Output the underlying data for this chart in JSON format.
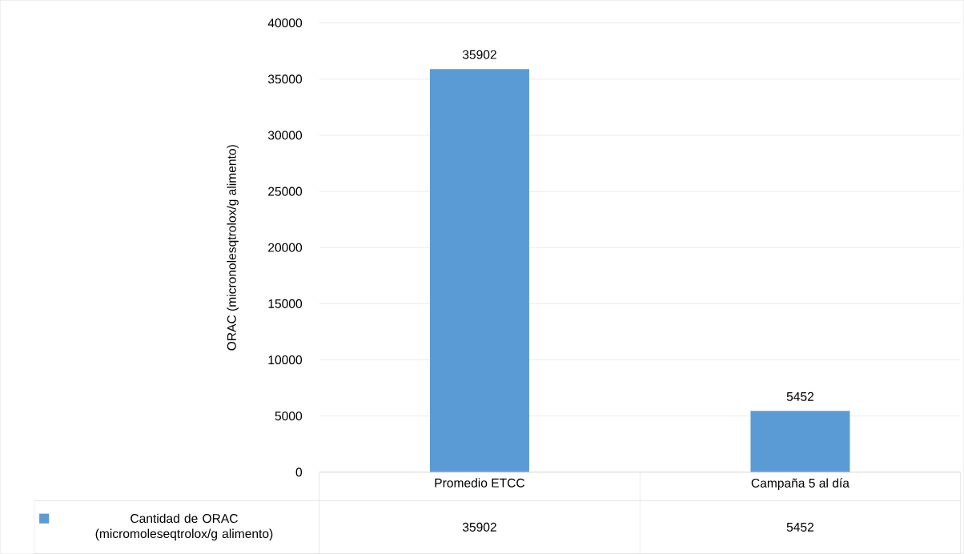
{
  "chart_data": {
    "type": "bar",
    "ylabel": "ORAC (micronolesqtrolox/g alimento)",
    "categories": [
      "Promedio ETCC",
      "Campaña 5 al día"
    ],
    "series": [
      {
        "name": "Cantidad de ORAC (micromoleseqtrolox/g alimento)",
        "color": "#5b9bd5",
        "values": [
          35902,
          5452
        ]
      }
    ],
    "ylim": [
      0,
      40000
    ],
    "yticks": [
      0,
      5000,
      10000,
      15000,
      20000,
      25000,
      30000,
      35000,
      40000
    ],
    "value_labels": [
      "35902",
      "5452"
    ],
    "grid": "y",
    "data_labels": true,
    "legend": "bottom"
  }
}
